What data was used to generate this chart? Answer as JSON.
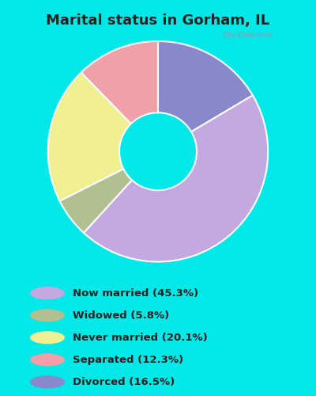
{
  "title": "Marital status in Gorham, IL",
  "title_fontsize": 13,
  "title_fontweight": "bold",
  "ordered_values": [
    16.5,
    45.3,
    5.8,
    20.1,
    12.3
  ],
  "ordered_colors": [
    "#8888cc",
    "#c4a8e0",
    "#b0c090",
    "#f0f090",
    "#f0a0a8"
  ],
  "legend_labels": [
    "Now married (45.3%)",
    "Widowed (5.8%)",
    "Never married (20.1%)",
    "Separated (12.3%)",
    "Divorced (16.5%)"
  ],
  "legend_colors": [
    "#c4a8e0",
    "#b0c090",
    "#f0f090",
    "#f0a0a8",
    "#8888cc"
  ],
  "background_outer": "#00e8e8",
  "background_chart": "#d4ede0",
  "watermark": "City-Data.com",
  "start_angle": 90,
  "donut_width": 0.28
}
